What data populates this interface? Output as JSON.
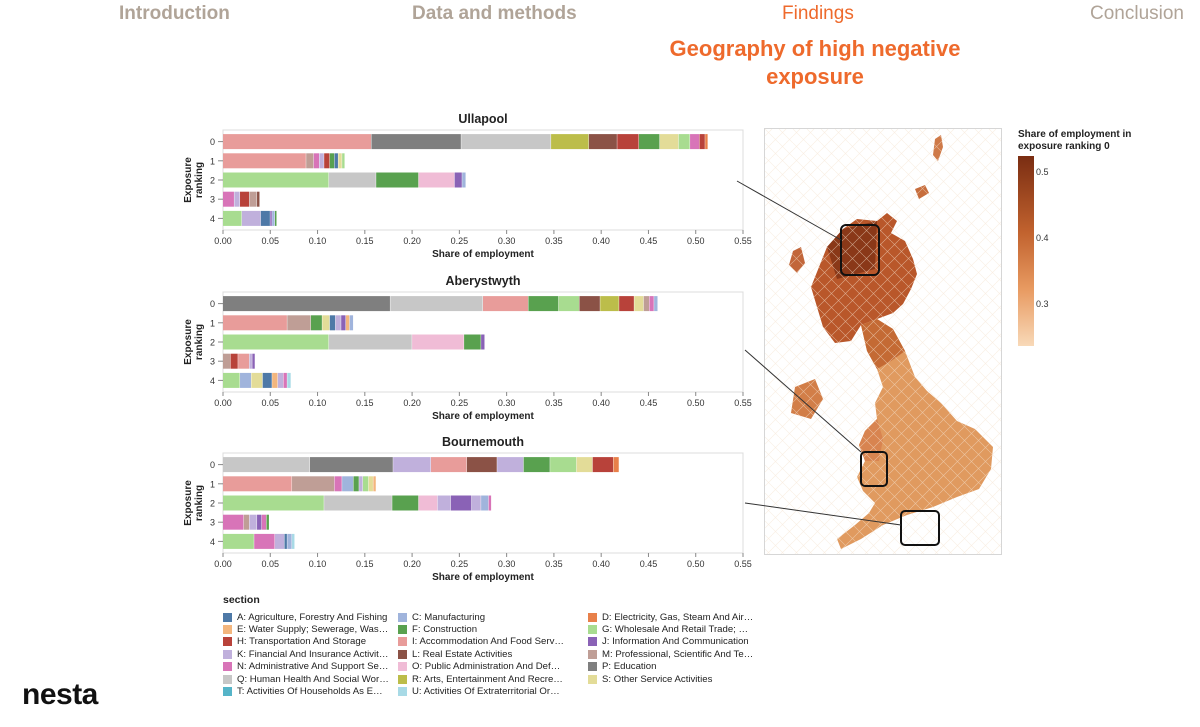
{
  "nav": {
    "items": [
      {
        "label": "Introduction",
        "active": false
      },
      {
        "label": "Data and methods",
        "active": false
      },
      {
        "label": "Findings",
        "active": true
      },
      {
        "label": "Conclusion",
        "active": false
      }
    ]
  },
  "headline": {
    "line1": "Geography of high negative",
    "line2": "exposure"
  },
  "brand": {
    "logo": "nesta"
  },
  "colors": {
    "accent": "#ee6a2c",
    "A": "#4e79a7",
    "C": "#a0cbe8",
    "D": "#f28e2b",
    "E": "#ffbe7d",
    "F": "#59a14f",
    "G": "#8cd17d",
    "H": "#b6992d",
    "I": "#f1ce63",
    "J": "#499894",
    "K": "#86bcb6",
    "L": "#e15759",
    "M": "#ff9d9a",
    "N": "#79706e",
    "O": "#bab0ac",
    "P": "#d37295",
    "Q": "#fabfd2",
    "R": "#b07aa1",
    "S": "#d4a6c8",
    "T": "#9d7660",
    "U": "#d7b5a6"
  },
  "legend": {
    "title": "section",
    "items": [
      {
        "code": "A",
        "label": "A: Agriculture, Forestry And Fishing",
        "color": "#4e79a7"
      },
      {
        "code": "C",
        "label": "C: Manufacturing",
        "color": "#a0b4dc"
      },
      {
        "code": "D",
        "label": "D: Electricity, Gas, Steam And Air…",
        "color": "#e8804a"
      },
      {
        "code": "E",
        "label": "E: Water Supply; Sewerage, Was…",
        "color": "#f3b67e"
      },
      {
        "code": "F",
        "label": "F: Construction",
        "color": "#59a14f"
      },
      {
        "code": "G",
        "label": "G: Wholesale And Retail Trade; …",
        "color": "#a8dc90"
      },
      {
        "code": "H",
        "label": "H: Transportation And Storage",
        "color": "#b8423a"
      },
      {
        "code": "I",
        "label": "I: Accommodation And Food Serv…",
        "color": "#e89c9a"
      },
      {
        "code": "J",
        "label": "J: Information And Communication",
        "color": "#8a62b6"
      },
      {
        "code": "K",
        "label": "K: Financial And Insurance Activit…",
        "color": "#c0b0dc"
      },
      {
        "code": "L",
        "label": "L: Real Estate Activities",
        "color": "#8b5246"
      },
      {
        "code": "M",
        "label": "M: Professional, Scientific And Te…",
        "color": "#bf9e96"
      },
      {
        "code": "N",
        "label": "N: Administrative And Support Se…",
        "color": "#d874b8"
      },
      {
        "code": "O",
        "label": "O: Public Administration And Def…",
        "color": "#f0bcd6"
      },
      {
        "code": "P",
        "label": "P: Education",
        "color": "#7f7f7f"
      },
      {
        "code": "Q",
        "label": "Q: Human Health And Social Wor…",
        "color": "#c7c7c7"
      },
      {
        "code": "R",
        "label": "R: Arts, Entertainment And Recre…",
        "color": "#bcbd4a"
      },
      {
        "code": "S",
        "label": "S: Other Service Activities",
        "color": "#e3dc98"
      },
      {
        "code": "T",
        "label": "T: Activities Of Households As E…",
        "color": "#55b4c8"
      },
      {
        "code": "U",
        "label": "U: Activities Of Extraterritorial Or…",
        "color": "#a8dae6"
      }
    ]
  },
  "colorbar": {
    "title": "Share of employment in exposure ranking 0",
    "ticks": [
      "0.5",
      "0.4",
      "0.3"
    ]
  },
  "chart_data": [
    {
      "type": "bar",
      "stacked": true,
      "orientation": "horizontal",
      "title": "Ullapool",
      "xlabel": "Share of employment",
      "ylabel": "Exposure ranking",
      "xlim": [
        0,
        0.55
      ],
      "xticks": [
        "0.00",
        "0.05",
        "0.10",
        "0.15",
        "0.20",
        "0.25",
        "0.30",
        "0.35",
        "0.40",
        "0.45",
        "0.50",
        "0.55"
      ],
      "categories": [
        "0",
        "1",
        "2",
        "3",
        "4"
      ],
      "rows": [
        [
          [
            "I",
            0.157
          ],
          [
            "P",
            0.095
          ],
          [
            "Q",
            0.095
          ],
          [
            "R",
            0.04
          ],
          [
            "L",
            0.03
          ],
          [
            "H",
            0.023
          ],
          [
            "F",
            0.022
          ],
          [
            "S",
            0.02
          ],
          [
            "G",
            0.012
          ],
          [
            "N",
            0.01
          ],
          [
            "H",
            0.006
          ],
          [
            "D",
            0.003
          ]
        ],
        [
          [
            "I",
            0.088
          ],
          [
            "M",
            0.008
          ],
          [
            "N",
            0.006
          ],
          [
            "K",
            0.005
          ],
          [
            "H",
            0.006
          ],
          [
            "F",
            0.005
          ],
          [
            "A",
            0.004
          ],
          [
            "S",
            0.004
          ],
          [
            "G",
            0.003
          ]
        ],
        [
          [
            "G",
            0.112
          ],
          [
            "Q",
            0.05
          ],
          [
            "F",
            0.045
          ],
          [
            "O",
            0.038
          ],
          [
            "J",
            0.008
          ],
          [
            "C",
            0.004
          ]
        ],
        [
          [
            "N",
            0.012
          ],
          [
            "K",
            0.006
          ],
          [
            "H",
            0.01
          ],
          [
            "M",
            0.008
          ],
          [
            "L",
            0.003
          ]
        ],
        [
          [
            "G",
            0.02
          ],
          [
            "K",
            0.02
          ],
          [
            "A",
            0.01
          ],
          [
            "J",
            0.002
          ],
          [
            "C",
            0.003
          ],
          [
            "F",
            0.002
          ]
        ]
      ]
    },
    {
      "type": "bar",
      "stacked": true,
      "orientation": "horizontal",
      "title": "Aberystwyth",
      "xlabel": "Share of employment",
      "ylabel": "Exposure ranking",
      "xlim": [
        0,
        0.55
      ],
      "xticks": [
        "0.00",
        "0.05",
        "0.10",
        "0.15",
        "0.20",
        "0.25",
        "0.30",
        "0.35",
        "0.40",
        "0.45",
        "0.50",
        "0.55"
      ],
      "categories": [
        "0",
        "1",
        "2",
        "3",
        "4"
      ],
      "rows": [
        [
          [
            "P",
            0.177
          ],
          [
            "Q",
            0.098
          ],
          [
            "I",
            0.048
          ],
          [
            "F",
            0.032
          ],
          [
            "G",
            0.022
          ],
          [
            "L",
            0.022
          ],
          [
            "R",
            0.02
          ],
          [
            "H",
            0.016
          ],
          [
            "S",
            0.01
          ],
          [
            "M",
            0.006
          ],
          [
            "N",
            0.005
          ],
          [
            "C",
            0.004
          ]
        ],
        [
          [
            "I",
            0.068
          ],
          [
            "M",
            0.025
          ],
          [
            "F",
            0.012
          ],
          [
            "S",
            0.008
          ],
          [
            "A",
            0.006
          ],
          [
            "K",
            0.006
          ],
          [
            "J",
            0.005
          ],
          [
            "E",
            0.004
          ],
          [
            "C",
            0.004
          ]
        ],
        [
          [
            "G",
            0.112
          ],
          [
            "Q",
            0.088
          ],
          [
            "O",
            0.055
          ],
          [
            "F",
            0.018
          ],
          [
            "J",
            0.004
          ]
        ],
        [
          [
            "M",
            0.008
          ],
          [
            "H",
            0.008
          ],
          [
            "I",
            0.012
          ],
          [
            "K",
            0.003
          ],
          [
            "J",
            0.003
          ]
        ],
        [
          [
            "G",
            0.018
          ],
          [
            "C",
            0.012
          ],
          [
            "S",
            0.012
          ],
          [
            "A",
            0.01
          ],
          [
            "E",
            0.006
          ],
          [
            "K",
            0.006
          ],
          [
            "N",
            0.004
          ],
          [
            "U",
            0.004
          ]
        ]
      ]
    },
    {
      "type": "bar",
      "stacked": true,
      "orientation": "horizontal",
      "title": "Bournemouth",
      "xlabel": "Share of employment",
      "ylabel": "Exposure ranking",
      "xlim": [
        0,
        0.55
      ],
      "xticks": [
        "0.00",
        "0.05",
        "0.10",
        "0.15",
        "0.20",
        "0.25",
        "0.30",
        "0.35",
        "0.40",
        "0.45",
        "0.50",
        "0.55"
      ],
      "categories": [
        "0",
        "1",
        "2",
        "3",
        "4"
      ],
      "rows": [
        [
          [
            "Q",
            0.092
          ],
          [
            "P",
            0.088
          ],
          [
            "K",
            0.04
          ],
          [
            "I",
            0.038
          ],
          [
            "L",
            0.032
          ],
          [
            "K",
            0.028
          ],
          [
            "F",
            0.028
          ],
          [
            "G",
            0.028
          ],
          [
            "S",
            0.017
          ],
          [
            "H",
            0.022
          ],
          [
            "D",
            0.006
          ]
        ],
        [
          [
            "I",
            0.073
          ],
          [
            "M",
            0.045
          ],
          [
            "N",
            0.008
          ],
          [
            "C",
            0.012
          ],
          [
            "F",
            0.006
          ],
          [
            "K",
            0.004
          ],
          [
            "G",
            0.006
          ],
          [
            "S",
            0.005
          ],
          [
            "E",
            0.003
          ]
        ],
        [
          [
            "G",
            0.107
          ],
          [
            "Q",
            0.072
          ],
          [
            "F",
            0.028
          ],
          [
            "O",
            0.02
          ],
          [
            "K",
            0.014
          ],
          [
            "J",
            0.022
          ],
          [
            "K",
            0.01
          ],
          [
            "C",
            0.008
          ],
          [
            "N",
            0.003
          ]
        ],
        [
          [
            "N",
            0.022
          ],
          [
            "M",
            0.006
          ],
          [
            "K",
            0.008
          ],
          [
            "J",
            0.005
          ],
          [
            "N",
            0.005
          ],
          [
            "F",
            0.003
          ]
        ],
        [
          [
            "G",
            0.033
          ],
          [
            "N",
            0.022
          ],
          [
            "K",
            0.01
          ],
          [
            "A",
            0.003
          ],
          [
            "C",
            0.005
          ],
          [
            "U",
            0.003
          ]
        ]
      ]
    }
  ]
}
